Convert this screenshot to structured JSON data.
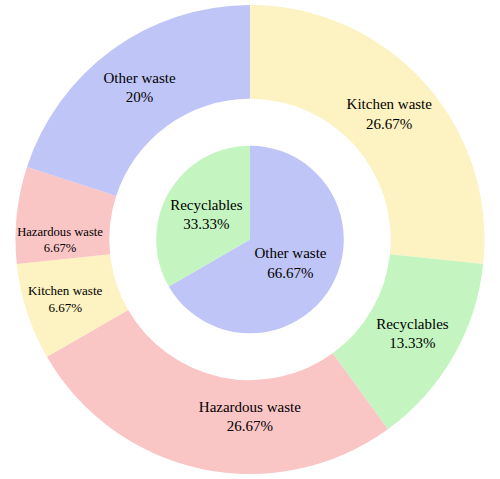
{
  "chart_data": [
    {
      "type": "pie",
      "categories": [
        "Other waste",
        "Recyclables"
      ],
      "values": [
        66.67,
        33.33
      ],
      "value_labels": [
        "66.67%",
        "33.33%"
      ],
      "colors": [
        "#c0c5f7",
        "#c4f5c1"
      ],
      "data_labels": true
    },
    {
      "type": "pie",
      "categories": [
        "Kitchen waste",
        "Recyclables",
        "Hazardous waste",
        "Kitchen waste",
        "Hazardous waste",
        "Other waste"
      ],
      "values": [
        26.67,
        13.33,
        26.67,
        6.67,
        6.67,
        20
      ],
      "value_labels": [
        "26.67%",
        "13.33%",
        "26.67%",
        "6.67%",
        "6.67%",
        "20%"
      ],
      "colors": [
        "#fdf2c1",
        "#c4f5c1",
        "#f9c5c5",
        "#fdf2c1",
        "#f9c5c5",
        "#c0c5f7"
      ],
      "data_labels": true
    }
  ]
}
